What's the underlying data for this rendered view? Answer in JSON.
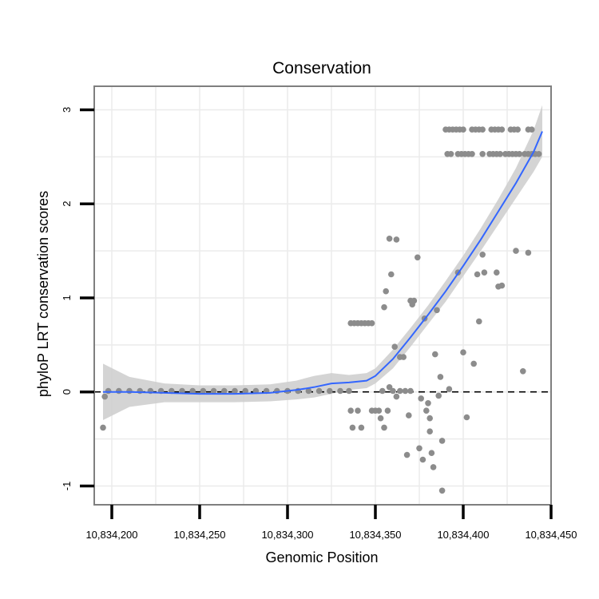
{
  "chart_data": {
    "type": "scatter",
    "title": "Conservation",
    "xlabel": "Genomic Position",
    "ylabel": "phyloP LRT conservation scores",
    "xlim": [
      10834190,
      10834450
    ],
    "ylim": [
      -1.2,
      3.25
    ],
    "x_ticks": [
      10834200,
      10834250,
      10834300,
      10834350,
      10834400,
      10834450
    ],
    "x_tick_labels": [
      "10,834,200",
      "10,834,250",
      "10,834,300",
      "10,834,350",
      "10,834,400",
      "10,834,450"
    ],
    "y_ticks": [
      -1,
      0,
      1,
      2,
      3
    ],
    "y_tick_labels": [
      "-1",
      "0",
      "1",
      "2",
      "3"
    ],
    "reference_line": {
      "y": 0,
      "style": "dashed"
    },
    "colors": {
      "points": "#8c8c8c",
      "smooth_line": "#3366ff",
      "ribbon": "#cccccc",
      "grid": "#ebebeb",
      "panel_border": "#7f7f7f"
    },
    "points": [
      [
        10834195,
        -0.38
      ],
      [
        10834196,
        -0.05
      ],
      [
        10834198,
        0.01
      ],
      [
        10834204,
        0.01
      ],
      [
        10834210,
        0.01
      ],
      [
        10834216,
        0.01
      ],
      [
        10834222,
        0.01
      ],
      [
        10834228,
        0.01
      ],
      [
        10834234,
        0.01
      ],
      [
        10834240,
        0.01
      ],
      [
        10834246,
        0.01
      ],
      [
        10834252,
        0.01
      ],
      [
        10834258,
        0.01
      ],
      [
        10834264,
        0.01
      ],
      [
        10834270,
        0.01
      ],
      [
        10834276,
        0.01
      ],
      [
        10834282,
        0.01
      ],
      [
        10834288,
        0.01
      ],
      [
        10834294,
        0.01
      ],
      [
        10834300,
        0.01
      ],
      [
        10834306,
        0.01
      ],
      [
        10834312,
        0.01
      ],
      [
        10834318,
        0.01
      ],
      [
        10834324,
        0.01
      ],
      [
        10834330,
        0.01
      ],
      [
        10834335,
        0.01
      ],
      [
        10834336,
        0.73
      ],
      [
        10834338,
        0.73
      ],
      [
        10834340,
        0.73
      ],
      [
        10834342,
        0.73
      ],
      [
        10834344,
        0.73
      ],
      [
        10834346,
        0.73
      ],
      [
        10834348,
        0.73
      ],
      [
        10834336,
        -0.2
      ],
      [
        10834337,
        -0.38
      ],
      [
        10834340,
        -0.2
      ],
      [
        10834342,
        -0.38
      ],
      [
        10834348,
        -0.2
      ],
      [
        10834350,
        -0.2
      ],
      [
        10834352,
        -0.2
      ],
      [
        10834353,
        -0.28
      ],
      [
        10834355,
        -0.38
      ],
      [
        10834357,
        -0.2
      ],
      [
        10834354,
        0.01
      ],
      [
        10834358,
        0.05
      ],
      [
        10834360,
        0.01
      ],
      [
        10834362,
        -0.05
      ],
      [
        10834364,
        0.01
      ],
      [
        10834355,
        0.9
      ],
      [
        10834356,
        1.07
      ],
      [
        10834359,
        1.25
      ],
      [
        10834358,
        1.63
      ],
      [
        10834362,
        1.62
      ],
      [
        10834361,
        0.48
      ],
      [
        10834364,
        0.37
      ],
      [
        10834366,
        0.37
      ],
      [
        10834369,
        -0.25
      ],
      [
        10834367,
        0.01
      ],
      [
        10834368,
        -0.67
      ],
      [
        10834370,
        0.01
      ],
      [
        10834370,
        0.97
      ],
      [
        10834372,
        0.97
      ],
      [
        10834371,
        0.93
      ],
      [
        10834374,
        1.43
      ],
      [
        10834376,
        -0.07
      ],
      [
        10834375,
        -0.6
      ],
      [
        10834377,
        -0.72
      ],
      [
        10834378,
        0.78
      ],
      [
        10834379,
        -0.2
      ],
      [
        10834380,
        -0.12
      ],
      [
        10834381,
        -0.28
      ],
      [
        10834381,
        -0.42
      ],
      [
        10834382,
        -0.65
      ],
      [
        10834383,
        -0.8
      ],
      [
        10834384,
        0.4
      ],
      [
        10834385,
        0.87
      ],
      [
        10834386,
        -0.04
      ],
      [
        10834387,
        0.16
      ],
      [
        10834388,
        -0.52
      ],
      [
        10834388,
        -1.05
      ],
      [
        10834392,
        0.03
      ],
      [
        10834397,
        1.27
      ],
      [
        10834400,
        0.42
      ],
      [
        10834402,
        -0.27
      ],
      [
        10834406,
        0.3
      ],
      [
        10834408,
        1.25
      ],
      [
        10834409,
        0.75
      ],
      [
        10834411,
        1.46
      ],
      [
        10834412,
        1.27
      ],
      [
        10834419,
        1.27
      ],
      [
        10834422,
        1.13
      ],
      [
        10834420,
        1.12
      ],
      [
        10834430,
        1.5
      ],
      [
        10834434,
        0.22
      ],
      [
        10834437,
        1.48
      ],
      [
        10834390,
        2.79
      ],
      [
        10834392,
        2.79
      ],
      [
        10834394,
        2.79
      ],
      [
        10834396,
        2.79
      ],
      [
        10834398,
        2.79
      ],
      [
        10834400,
        2.79
      ],
      [
        10834405,
        2.79
      ],
      [
        10834407,
        2.79
      ],
      [
        10834409,
        2.79
      ],
      [
        10834411,
        2.79
      ],
      [
        10834416,
        2.79
      ],
      [
        10834418,
        2.79
      ],
      [
        10834420,
        2.79
      ],
      [
        10834422,
        2.79
      ],
      [
        10834427,
        2.79
      ],
      [
        10834429,
        2.79
      ],
      [
        10834431,
        2.79
      ],
      [
        10834437,
        2.79
      ],
      [
        10834439,
        2.79
      ],
      [
        10834391,
        2.53
      ],
      [
        10834393,
        2.53
      ],
      [
        10834397,
        2.53
      ],
      [
        10834399,
        2.53
      ],
      [
        10834401,
        2.53
      ],
      [
        10834403,
        2.53
      ],
      [
        10834405,
        2.53
      ],
      [
        10834411,
        2.53
      ],
      [
        10834415,
        2.53
      ],
      [
        10834417,
        2.53
      ],
      [
        10834419,
        2.53
      ],
      [
        10834421,
        2.53
      ],
      [
        10834424,
        2.53
      ],
      [
        10834426,
        2.53
      ],
      [
        10834428,
        2.53
      ],
      [
        10834430,
        2.53
      ],
      [
        10834432,
        2.53
      ],
      [
        10834435,
        2.53
      ],
      [
        10834437,
        2.53
      ],
      [
        10834439,
        2.53
      ],
      [
        10834441,
        2.53
      ],
      [
        10834443,
        2.53
      ]
    ],
    "smooth_line": {
      "x": [
        10834195,
        10834210,
        10834230,
        10834250,
        10834270,
        10834290,
        10834305,
        10834315,
        10834325,
        10834335,
        10834345,
        10834350,
        10834360,
        10834370,
        10834380,
        10834390,
        10834400,
        10834410,
        10834420,
        10834430,
        10834440,
        10834445
      ],
      "y": [
        0.0,
        0.0,
        -0.01,
        -0.02,
        -0.02,
        -0.01,
        0.02,
        0.05,
        0.09,
        0.1,
        0.12,
        0.17,
        0.35,
        0.58,
        0.82,
        1.07,
        1.34,
        1.62,
        1.92,
        2.22,
        2.55,
        2.77
      ],
      "ci_upper": [
        0.3,
        0.16,
        0.09,
        0.07,
        0.07,
        0.08,
        0.12,
        0.17,
        0.2,
        0.18,
        0.2,
        0.25,
        0.45,
        0.68,
        0.92,
        1.18,
        1.45,
        1.74,
        2.05,
        2.38,
        2.78,
        3.05
      ],
      "ci_lower": [
        -0.3,
        -0.16,
        -0.11,
        -0.11,
        -0.11,
        -0.1,
        -0.08,
        -0.06,
        -0.02,
        0.02,
        0.04,
        0.09,
        0.25,
        0.48,
        0.72,
        0.96,
        1.23,
        1.5,
        1.78,
        2.06,
        2.34,
        2.5
      ]
    }
  }
}
